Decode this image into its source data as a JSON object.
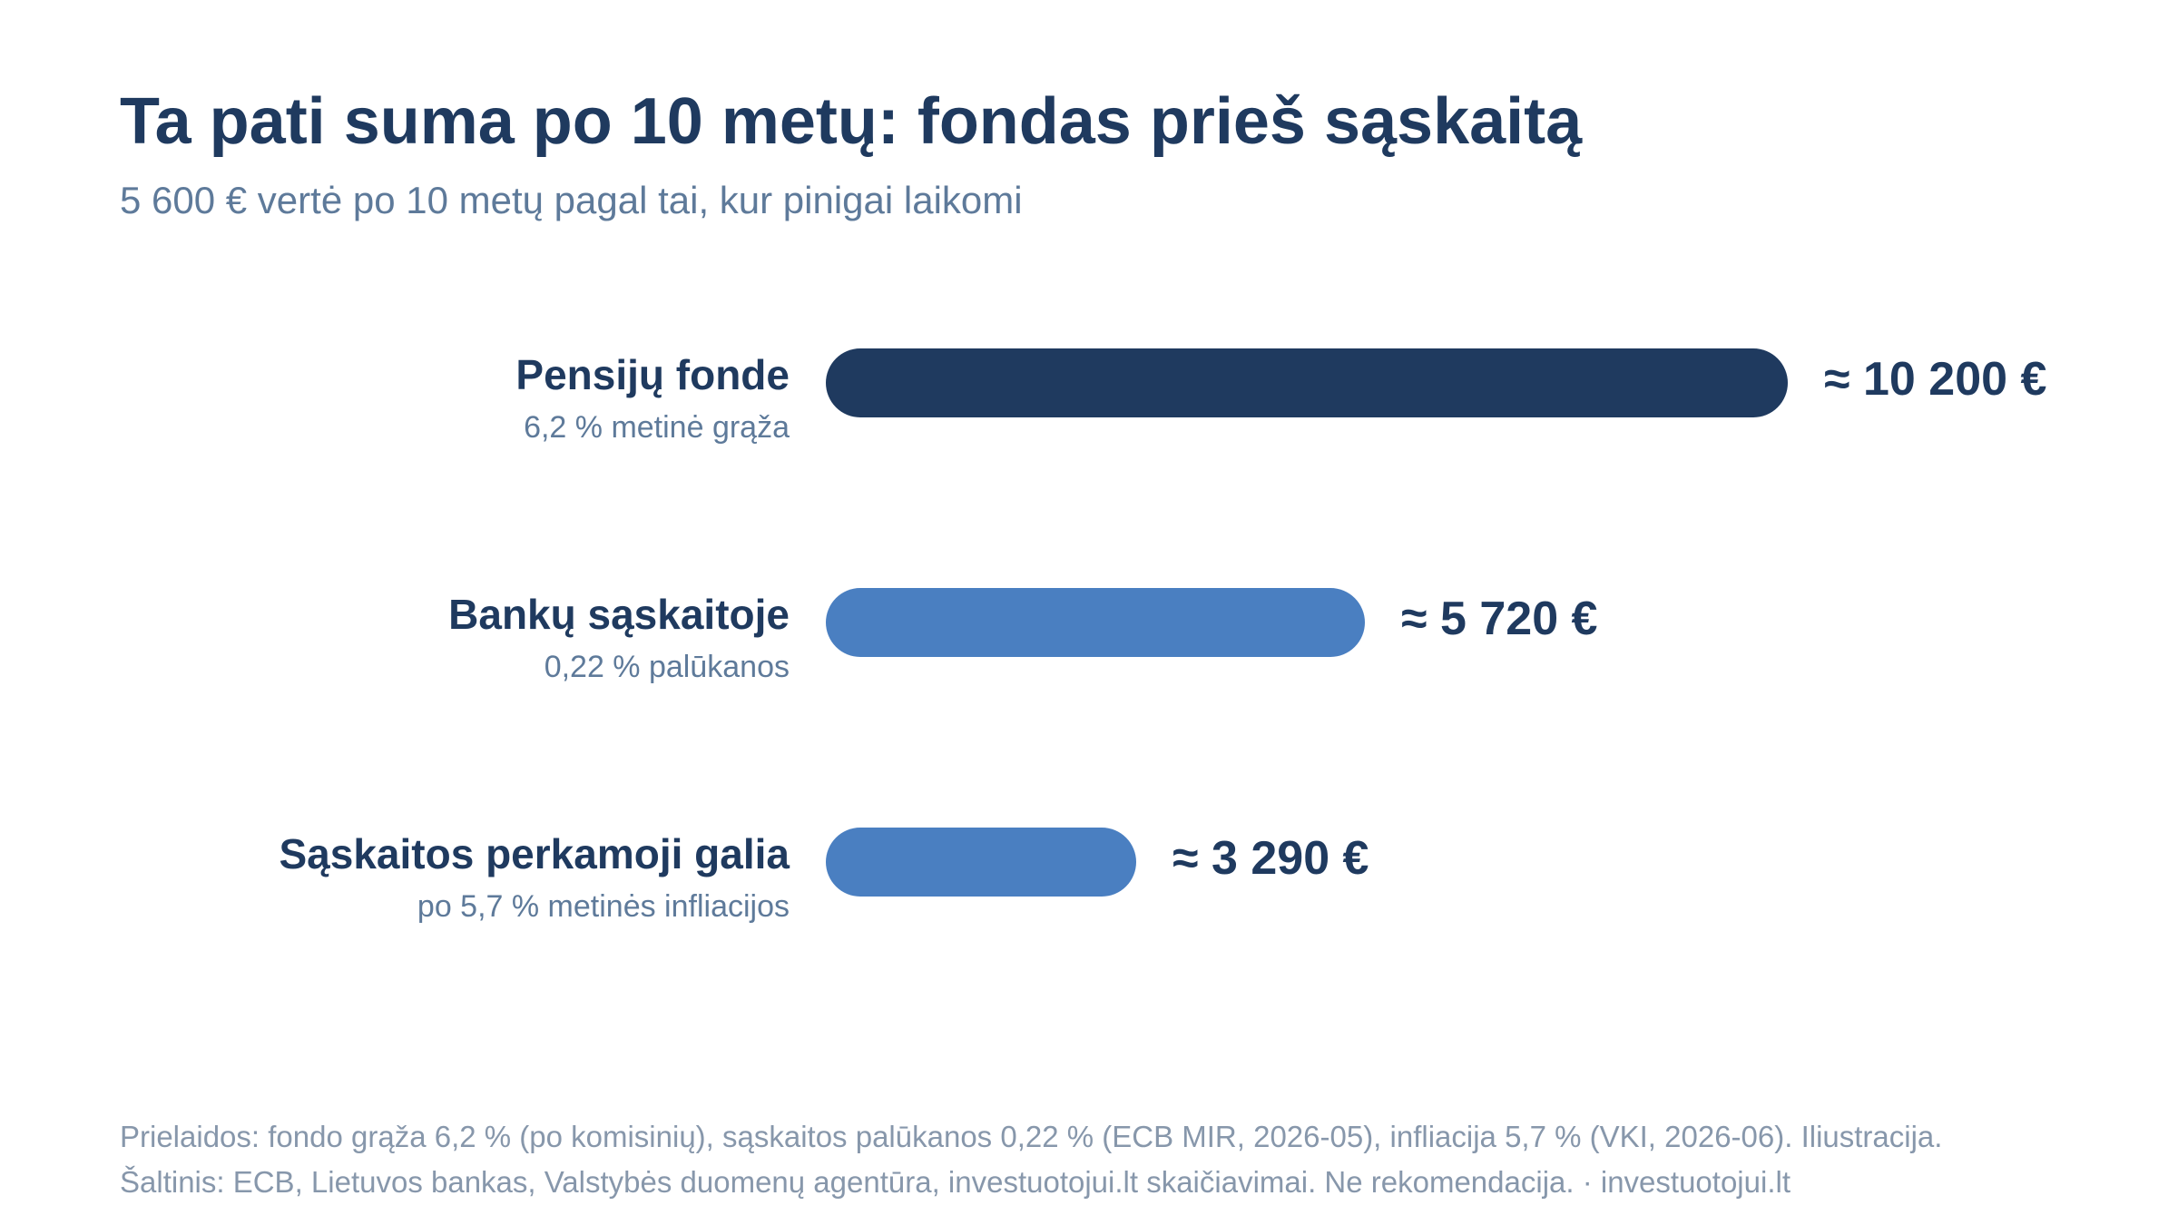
{
  "header": {
    "title": "Ta pati suma po 10 metų: fondas prieš sąskaitą",
    "subtitle": "5 600 € vertė po 10 metų pagal tai, kur pinigai laikomi"
  },
  "chart_data": {
    "type": "bar",
    "orientation": "horizontal",
    "title": "Ta pati suma po 10 metų: fondas prieš sąskaitą",
    "subtitle": "5 600 € vertė po 10 metų pagal tai, kur pinigai laikomi",
    "categories": [
      "Pensijų fonde",
      "Bankų sąskaitoje",
      "Sąskaitos perkamoji galia"
    ],
    "sublabels": [
      "6,2 % metinė grąža",
      "0,22 % palūkanos",
      "po 5,7 % metinės infliacijos"
    ],
    "values": [
      10200,
      5720,
      3290
    ],
    "value_labels": [
      "≈ 10 200 €",
      "≈ 5 720 €",
      "≈ 3 290 €"
    ],
    "colors": [
      "#1f3a5f",
      "#4a7fc1",
      "#4a7fc1"
    ],
    "xlim": [
      0,
      10200
    ],
    "grid": false,
    "legend": "none"
  },
  "footer": {
    "line1": "Prielaidos: fondo grąža 6,2 % (po komisinių), sąskaitos palūkanos 0,22 % (ECB MIR, 2026-05), infliacija 5,7 % (VKI, 2026-06). Iliustracija.",
    "line2": "Šaltinis: ECB, Lietuvos bankas, Valstybės duomenų agentūra, investuotojui.lt skaičiavimai. Ne rekomendacija. · investuotojui.lt"
  }
}
